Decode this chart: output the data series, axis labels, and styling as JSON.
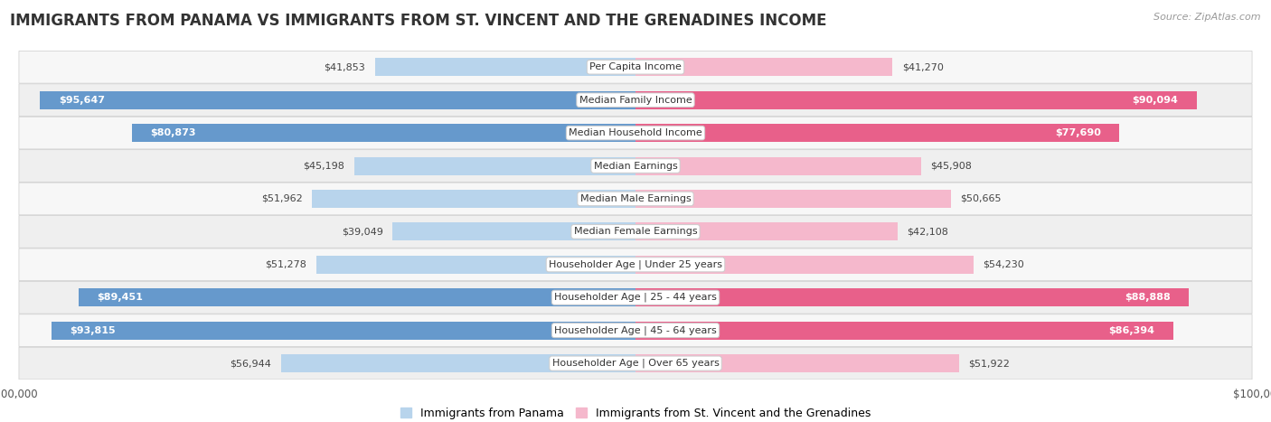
{
  "title": "IMMIGRANTS FROM PANAMA VS IMMIGRANTS FROM ST. VINCENT AND THE GRENADINES INCOME",
  "source": "Source: ZipAtlas.com",
  "categories": [
    "Per Capita Income",
    "Median Family Income",
    "Median Household Income",
    "Median Earnings",
    "Median Male Earnings",
    "Median Female Earnings",
    "Householder Age | Under 25 years",
    "Householder Age | 25 - 44 years",
    "Householder Age | 45 - 64 years",
    "Householder Age | Over 65 years"
  ],
  "panama_values": [
    41853,
    95647,
    80873,
    45198,
    51962,
    39049,
    51278,
    89451,
    93815,
    56944
  ],
  "stv_values": [
    41270,
    90094,
    77690,
    45908,
    50665,
    42108,
    54230,
    88888,
    86394,
    51922
  ],
  "panama_labels": [
    "$41,853",
    "$95,647",
    "$80,873",
    "$45,198",
    "$51,962",
    "$39,049",
    "$51,278",
    "$89,451",
    "$93,815",
    "$56,944"
  ],
  "stv_labels": [
    "$41,270",
    "$90,094",
    "$77,690",
    "$45,908",
    "$50,665",
    "$42,108",
    "$54,230",
    "$88,888",
    "$86,394",
    "$51,922"
  ],
  "max_value": 100000,
  "panama_color_light": "#b8d4ec",
  "panama_color_dark": "#6699cc",
  "stv_color_light": "#f5b8cc",
  "stv_color_dark": "#e8608a",
  "inside_label_threshold": 60000,
  "legend_panama": "Immigrants from Panama",
  "legend_stv": "Immigrants from St. Vincent and the Grenadines",
  "title_fontsize": 12,
  "label_fontsize": 8,
  "category_fontsize": 8,
  "source_fontsize": 8
}
